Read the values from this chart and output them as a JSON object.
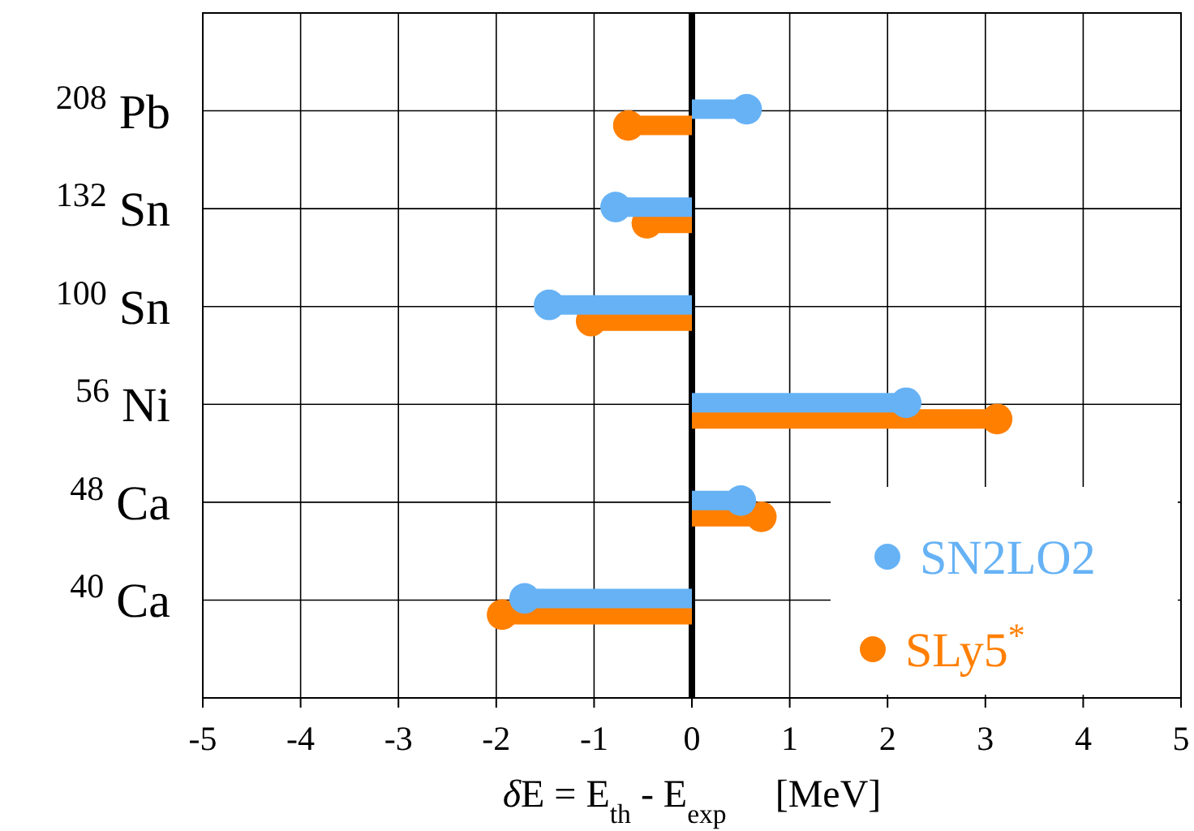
{
  "chart_data": {
    "type": "lollipop",
    "orientation": "horizontal",
    "xlabel": "δE = E$_{th}$ - E$_{exp}$     [MeV]",
    "categories": [
      "$^{208}$ Pb",
      "$^{132}$ Sn",
      "$^{100}$ Sn",
      "$^{56}$ Ni",
      "$^{48}$ Ca",
      "$^{40}$ Ca"
    ],
    "series": [
      {
        "name": "SN2LO2",
        "color": "#66b2f5",
        "values": [
          0.56,
          -0.78,
          -1.46,
          2.19,
          0.5,
          -1.71
        ]
      },
      {
        "name": "SLy5$^{*}$",
        "color": "#ff7f00",
        "values": [
          -0.65,
          -0.46,
          -1.03,
          3.12,
          0.71,
          -1.94
        ]
      }
    ],
    "xlim": [
      -5,
      5
    ],
    "xticks": [
      -5,
      -4,
      -3,
      -2,
      -1,
      0,
      1,
      2,
      3,
      4,
      5
    ],
    "ref_lines": [
      {
        "axis": "x",
        "value": 0,
        "color": "#000000"
      }
    ],
    "grid": true,
    "legend": "bottom right",
    "marker": "circle"
  }
}
